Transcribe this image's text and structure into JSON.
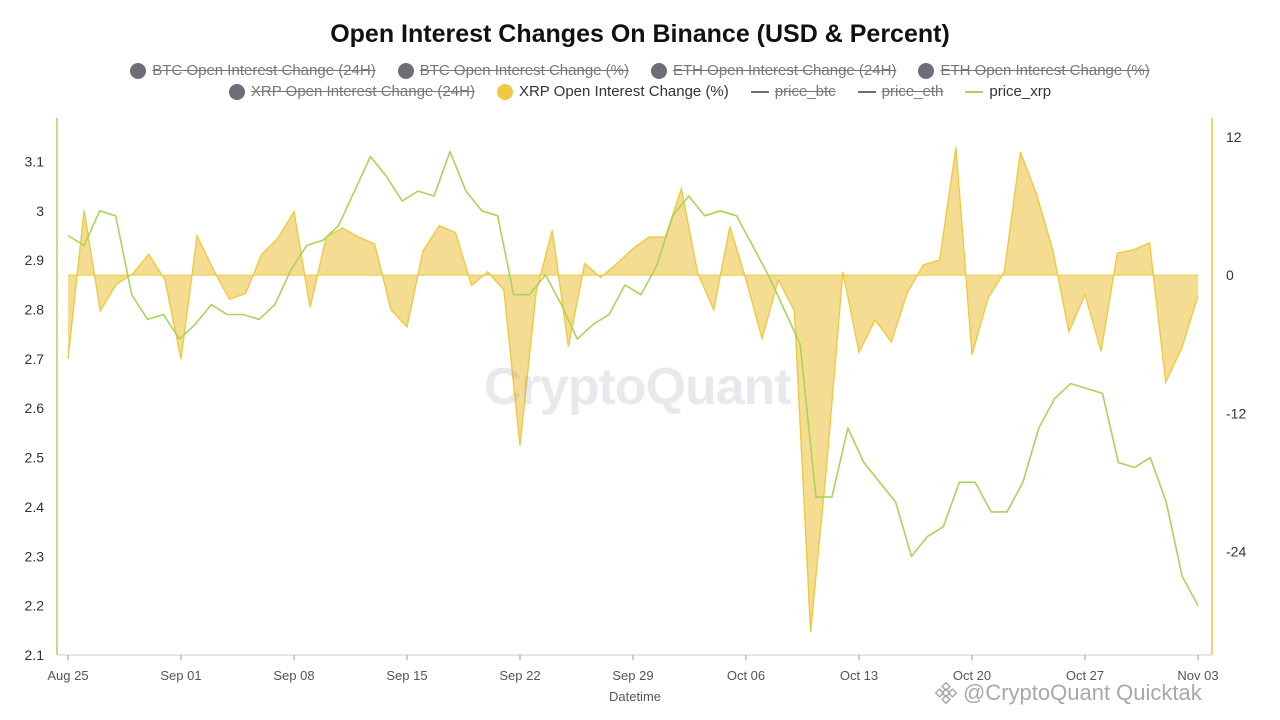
{
  "chart_data": {
    "type": "line",
    "title": "Open Interest Changes On Binance (USD & Percent)",
    "xlabel": "Datetime",
    "ylabel_left": "",
    "ylabel_right": "",
    "x_ticks": [
      "Aug 25",
      "Sep 01",
      "Sep 08",
      "Sep 15",
      "Sep 22",
      "Sep 29",
      "Oct 06",
      "Oct 13",
      "Oct 20",
      "Oct 27",
      "Nov 03"
    ],
    "y_left_ticks": [
      "3.1",
      "3",
      "2.9",
      "2.8",
      "2.7",
      "2.6",
      "2.5",
      "2.4",
      "2.3",
      "2.2",
      "2.1"
    ],
    "y_left_tick_values": [
      3.1,
      3.0,
      2.9,
      2.8,
      2.7,
      2.6,
      2.5,
      2.4,
      2.3,
      2.2,
      2.1
    ],
    "y_right_ticks": [
      "12",
      "0",
      "-12",
      "-24"
    ],
    "y_right_tick_values": [
      12,
      0,
      -12,
      -24
    ],
    "ylim_left": [
      2.1,
      3.18
    ],
    "ylim_right": [
      -33,
      13.3
    ],
    "grid": false,
    "legend": [
      {
        "name": "BTC Open Interest Change (24H)",
        "shape": "dot",
        "color": "#6e6e78",
        "hidden": true
      },
      {
        "name": "BTC Open Interest Change (%)",
        "shape": "dot",
        "color": "#6e6e78",
        "hidden": true
      },
      {
        "name": "ETH Open Interest Change (24H)",
        "shape": "dot",
        "color": "#6e6e78",
        "hidden": true
      },
      {
        "name": "ETH Open Interest Change (%)",
        "shape": "dot",
        "color": "#6e6e78",
        "hidden": true
      },
      {
        "name": "XRP Open Interest Change (24H)",
        "shape": "dot",
        "color": "#6e6e78",
        "hidden": true
      },
      {
        "name": "XRP Open Interest Change (%)",
        "shape": "dot",
        "color": "#f0c940",
        "hidden": false
      },
      {
        "name": "price_btc",
        "shape": "line",
        "color": "#6e6e78",
        "hidden": true
      },
      {
        "name": "price_eth",
        "shape": "line",
        "color": "#6e6e78",
        "hidden": true
      },
      {
        "name": "price_xrp",
        "shape": "line",
        "color": "#a8d45a",
        "hidden": false
      }
    ],
    "x_start": "Aug 25",
    "series": [
      {
        "name": "XRP Open Interest Change (%)",
        "type": "area",
        "axis": "right",
        "color": "#f0c940",
        "fill": "#f2d680",
        "values": [
          -7.3,
          5.6,
          -3.1,
          -0.8,
          0.1,
          1.8,
          -0.4,
          -7.3,
          3.4,
          0.5,
          -2.1,
          -1.6,
          1.8,
          3.2,
          5.5,
          -2.8,
          3.3,
          4.1,
          3.3,
          2.7,
          -3.0,
          -4.5,
          2.1,
          4.3,
          3.7,
          -0.9,
          0.3,
          -1.3,
          -14.8,
          -1.5,
          3.9,
          -6.2,
          1.0,
          -0.2,
          1.0,
          2.3,
          3.3,
          3.3,
          7.5,
          0.2,
          -3.0,
          4.2,
          -0.4,
          -5.5,
          -0.4,
          -3.1,
          -31.0,
          -16.5,
          0.3,
          -6.7,
          -3.9,
          -5.8,
          -1.5,
          0.9,
          1.3,
          11.1,
          -6.9,
          -2.0,
          0.3,
          10.7,
          7.0,
          2.2,
          -4.9,
          -1.7,
          -6.6,
          1.9,
          2.2,
          2.8,
          -9.3,
          -6.3,
          -1.8
        ]
      },
      {
        "name": "price_xrp",
        "type": "line",
        "axis": "left",
        "color": "#a8d45a",
        "values": [
          2.95,
          2.93,
          3.0,
          2.99,
          2.83,
          2.78,
          2.79,
          2.74,
          2.77,
          2.81,
          2.79,
          2.79,
          2.78,
          2.81,
          2.88,
          2.93,
          2.94,
          2.97,
          3.04,
          3.11,
          3.07,
          3.02,
          3.04,
          3.03,
          3.12,
          3.04,
          3.0,
          2.99,
          2.83,
          2.83,
          2.87,
          2.81,
          2.74,
          2.77,
          2.79,
          2.85,
          2.83,
          2.89,
          2.99,
          3.03,
          2.99,
          3.0,
          2.99,
          2.93,
          2.87,
          2.8,
          2.73,
          2.42,
          2.42,
          2.56,
          2.49,
          2.45,
          2.41,
          2.3,
          2.34,
          2.36,
          2.45,
          2.45,
          2.39,
          2.39,
          2.45,
          2.56,
          2.62,
          2.65,
          2.64,
          2.63,
          2.49,
          2.48,
          2.5,
          2.41,
          2.26,
          2.2
        ]
      }
    ]
  },
  "watermark": "CryptoQuant",
  "credit": "@CryptoQuant Quicktak"
}
